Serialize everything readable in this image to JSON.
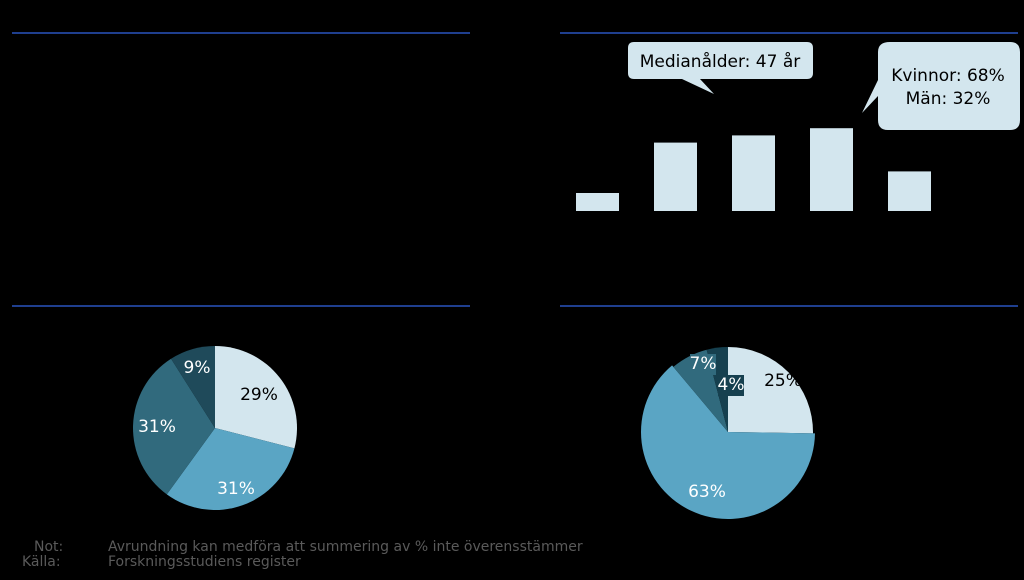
{
  "colors": {
    "lightest": "#d3e6ee",
    "light": "#5aa5c4",
    "mid": "#316a7d",
    "dark": "#1f4a5a",
    "darkest": "#16404f",
    "rule": "#1f3f8f",
    "footnote": "#5a5a5a"
  },
  "callouts": {
    "median": "Medianålder: 47 år",
    "gender_women": "Kvinnor: 68%",
    "gender_men": "Män: 32%"
  },
  "chart_data": [
    {
      "type": "bar",
      "categories": [
        "",
        "",
        "",
        "",
        ""
      ],
      "values": [
        5,
        19,
        21,
        23,
        11
      ],
      "ylim": [
        0,
        25
      ],
      "grid": false
    },
    {
      "type": "pie",
      "slices": [
        {
          "value": 29,
          "label": "29%"
        },
        {
          "value": 31,
          "label": "31%"
        },
        {
          "value": 31,
          "label": "31%"
        },
        {
          "value": 9,
          "label": "9%"
        }
      ]
    },
    {
      "type": "pie",
      "slices": [
        {
          "value": 25,
          "label": "25%"
        },
        {
          "value": 63,
          "label": "63%"
        },
        {
          "value": 7,
          "label": "7%"
        },
        {
          "value": 4,
          "label": "4%"
        }
      ]
    }
  ],
  "footnote": {
    "note_key": "Not:",
    "note_text": "Avrundning kan medföra att summering av % inte överensstämmer",
    "source_key": "Källa:",
    "source_text": "Forskningsstudiens register"
  }
}
